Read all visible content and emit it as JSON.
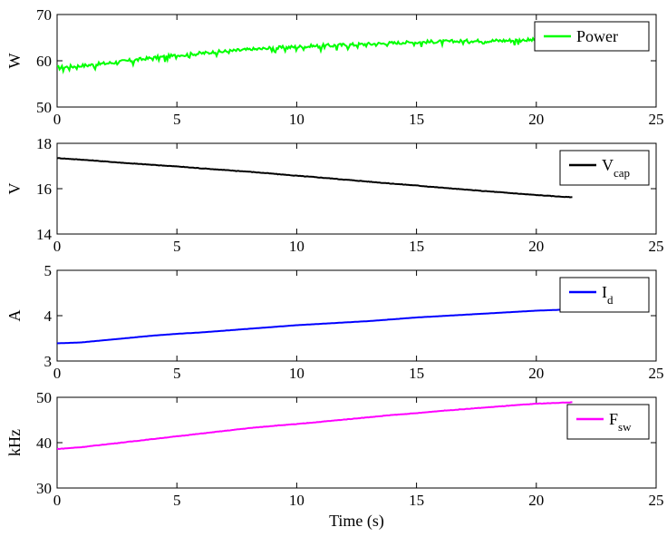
{
  "chart_data": [
    {
      "type": "line",
      "ylabel": "W",
      "xlim": [
        0,
        25
      ],
      "ylim": [
        50,
        70
      ],
      "xticks": [
        0,
        5,
        10,
        15,
        20,
        25
      ],
      "yticks": [
        50,
        60,
        70
      ],
      "legend": "top-right",
      "series": [
        {
          "name": "Power",
          "color": "#00ff00",
          "x": [
            0,
            1,
            2,
            3,
            4,
            5,
            6,
            7,
            8,
            9,
            10,
            11,
            12,
            13,
            14,
            15,
            16,
            17,
            18,
            19,
            20,
            21,
            21.5
          ],
          "y": [
            58.5,
            58.9,
            59.4,
            60.0,
            60.6,
            61.1,
            61.6,
            62.0,
            62.4,
            62.7,
            63.0,
            63.2,
            63.4,
            63.6,
            63.8,
            64.0,
            64.1,
            64.2,
            64.3,
            64.4,
            64.5,
            64.6,
            64.6
          ]
        }
      ]
    },
    {
      "type": "line",
      "ylabel": "V",
      "xlim": [
        0,
        25
      ],
      "ylim": [
        14,
        18
      ],
      "xticks": [
        0,
        5,
        10,
        15,
        20,
        25
      ],
      "yticks": [
        14,
        16,
        18
      ],
      "legend": "top-right",
      "series": [
        {
          "name": "V",
          "subscript": "cap",
          "color": "#000000",
          "x": [
            0,
            1,
            2,
            3,
            4,
            5,
            6,
            7,
            8,
            9,
            10,
            11,
            12,
            13,
            14,
            15,
            16,
            17,
            18,
            19,
            20,
            21,
            21.5
          ],
          "y": [
            17.35,
            17.28,
            17.2,
            17.12,
            17.05,
            16.98,
            16.9,
            16.82,
            16.75,
            16.66,
            16.57,
            16.49,
            16.4,
            16.31,
            16.22,
            16.14,
            16.05,
            15.96,
            15.88,
            15.8,
            15.72,
            15.65,
            15.62
          ]
        }
      ]
    },
    {
      "type": "line",
      "ylabel": "A",
      "xlim": [
        0,
        25
      ],
      "ylim": [
        3,
        5
      ],
      "xticks": [
        0,
        5,
        10,
        15,
        20,
        25
      ],
      "yticks": [
        3,
        4,
        5
      ],
      "legend": "top-right",
      "series": [
        {
          "name": "I",
          "subscript": "d",
          "color": "#0000ff",
          "x": [
            0,
            1,
            2,
            3,
            4,
            5,
            6,
            7,
            8,
            9,
            10,
            11,
            12,
            13,
            14,
            15,
            16,
            17,
            18,
            19,
            20,
            21,
            21.5
          ],
          "y": [
            3.39,
            3.41,
            3.46,
            3.51,
            3.56,
            3.6,
            3.63,
            3.67,
            3.71,
            3.75,
            3.79,
            3.82,
            3.85,
            3.88,
            3.92,
            3.96,
            3.99,
            4.02,
            4.05,
            4.08,
            4.11,
            4.13,
            4.14
          ]
        }
      ]
    },
    {
      "type": "line",
      "ylabel": "kHz",
      "xlabel": "Time (s)",
      "xlim": [
        0,
        25
      ],
      "ylim": [
        30,
        50
      ],
      "xticks": [
        0,
        5,
        10,
        15,
        20,
        25
      ],
      "yticks": [
        30,
        40,
        50
      ],
      "legend": "top-right",
      "series": [
        {
          "name": "F",
          "subscript": "sw",
          "color": "#ff00ff",
          "x": [
            0,
            1,
            2,
            3,
            4,
            5,
            6,
            7,
            8,
            9,
            10,
            11,
            12,
            13,
            14,
            15,
            16,
            17,
            18,
            19,
            20,
            21,
            21.5
          ],
          "y": [
            38.6,
            39.0,
            39.6,
            40.2,
            40.8,
            41.4,
            42.0,
            42.6,
            43.2,
            43.7,
            44.1,
            44.6,
            45.1,
            45.6,
            46.1,
            46.5,
            47.0,
            47.4,
            47.8,
            48.2,
            48.6,
            48.8,
            48.9
          ]
        }
      ]
    }
  ]
}
